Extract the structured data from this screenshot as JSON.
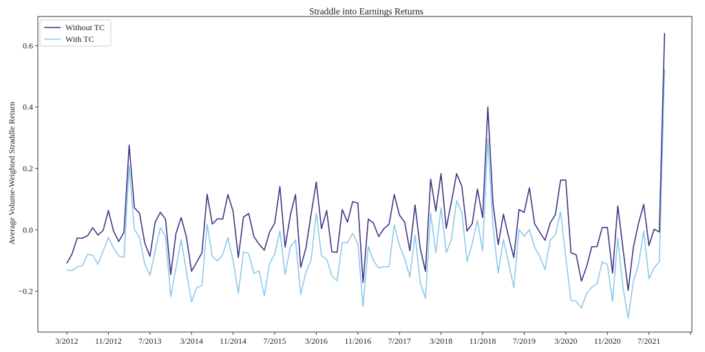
{
  "chart_data": {
    "type": "line",
    "title": "Straddle into Earnings Returns",
    "xlabel": "",
    "ylabel": "Average Volume-Weighted Straddle Return",
    "x_start": "3/2012",
    "x_step_months": 1,
    "x_tick_labels": [
      "3/2012",
      "11/2012",
      "7/2013",
      "3/2014",
      "11/2014",
      "7/2015",
      "3/2016",
      "11/2016",
      "7/2017",
      "3/2018",
      "11/2018",
      "7/2019",
      "3/2020",
      "11/2020",
      "7/2021",
      ""
    ],
    "y_ticks": [
      -0.2,
      0.0,
      0.2,
      0.4,
      0.6
    ],
    "y_tick_labels": [
      "−0.2",
      "0.0",
      "0.2",
      "0.4",
      "0.6"
    ],
    "ylim": [
      -0.333,
      0.695
    ],
    "grid": false,
    "legend_position": "top-left",
    "series": [
      {
        "name": "Without TC",
        "color": "#3f3584",
        "values": [
          -0.109,
          -0.079,
          -0.027,
          -0.027,
          -0.019,
          0.007,
          -0.017,
          -0.002,
          0.063,
          -0.004,
          -0.038,
          -0.008,
          0.276,
          0.072,
          0.054,
          -0.043,
          -0.086,
          0.025,
          0.057,
          0.035,
          -0.146,
          -0.012,
          0.04,
          -0.022,
          -0.135,
          -0.105,
          -0.075,
          0.116,
          0.019,
          0.036,
          0.035,
          0.115,
          0.06,
          -0.09,
          0.042,
          0.053,
          -0.022,
          -0.047,
          -0.066,
          -0.008,
          0.022,
          0.141,
          -0.056,
          0.047,
          0.115,
          -0.122,
          -0.06,
          0.05,
          0.156,
          0.004,
          0.063,
          -0.072,
          -0.073,
          0.066,
          0.025,
          0.092,
          0.087,
          -0.172,
          0.035,
          0.022,
          -0.022,
          0.004,
          0.018,
          0.115,
          0.048,
          0.025,
          -0.068,
          0.081,
          -0.06,
          -0.135,
          0.165,
          0.061,
          0.183,
          0.005,
          0.092,
          0.183,
          0.142,
          -0.004,
          0.02,
          0.133,
          0.04,
          0.4,
          0.085,
          -0.048,
          0.051,
          -0.023,
          -0.09,
          0.066,
          0.057,
          0.137,
          0.02,
          -0.008,
          -0.034,
          0.022,
          0.05,
          0.162,
          0.162,
          -0.075,
          -0.081,
          -0.167,
          -0.12,
          -0.055,
          -0.055,
          0.007,
          0.008,
          -0.141,
          0.078,
          -0.06,
          -0.197,
          -0.057,
          0.022,
          0.083,
          -0.051,
          0.002,
          -0.007,
          0.641
        ]
      },
      {
        "name": "With TC",
        "color": "#8ec8ea",
        "values": [
          -0.131,
          -0.133,
          -0.121,
          -0.116,
          -0.08,
          -0.083,
          -0.112,
          -0.068,
          -0.025,
          -0.059,
          -0.085,
          -0.09,
          0.209,
          0.001,
          -0.025,
          -0.112,
          -0.148,
          -0.068,
          0.007,
          -0.023,
          -0.217,
          -0.124,
          -0.032,
          -0.135,
          -0.235,
          -0.188,
          -0.182,
          0.019,
          -0.086,
          -0.101,
          -0.081,
          -0.025,
          -0.101,
          -0.206,
          -0.072,
          -0.077,
          -0.142,
          -0.133,
          -0.215,
          -0.111,
          -0.079,
          -0.004,
          -0.145,
          -0.056,
          -0.034,
          -0.211,
          -0.139,
          -0.098,
          0.055,
          -0.084,
          -0.096,
          -0.15,
          -0.166,
          -0.042,
          -0.042,
          -0.012,
          -0.045,
          -0.25,
          -0.054,
          -0.101,
          -0.124,
          -0.12,
          -0.12,
          0.016,
          -0.051,
          -0.092,
          -0.153,
          -0.017,
          -0.172,
          -0.223,
          0.055,
          -0.075,
          0.072,
          -0.074,
          -0.031,
          0.095,
          0.055,
          -0.103,
          -0.045,
          0.031,
          -0.069,
          0.297,
          0.01,
          -0.141,
          -0.032,
          -0.107,
          -0.188,
          0.001,
          -0.021,
          0.001,
          -0.057,
          -0.086,
          -0.129,
          -0.034,
          -0.016,
          0.059,
          -0.09,
          -0.23,
          -0.233,
          -0.254,
          -0.208,
          -0.187,
          -0.176,
          -0.105,
          -0.112,
          -0.233,
          -0.027,
          -0.187,
          -0.288,
          -0.168,
          -0.112,
          -0.004,
          -0.159,
          -0.124,
          -0.104,
          0.524
        ]
      }
    ]
  }
}
